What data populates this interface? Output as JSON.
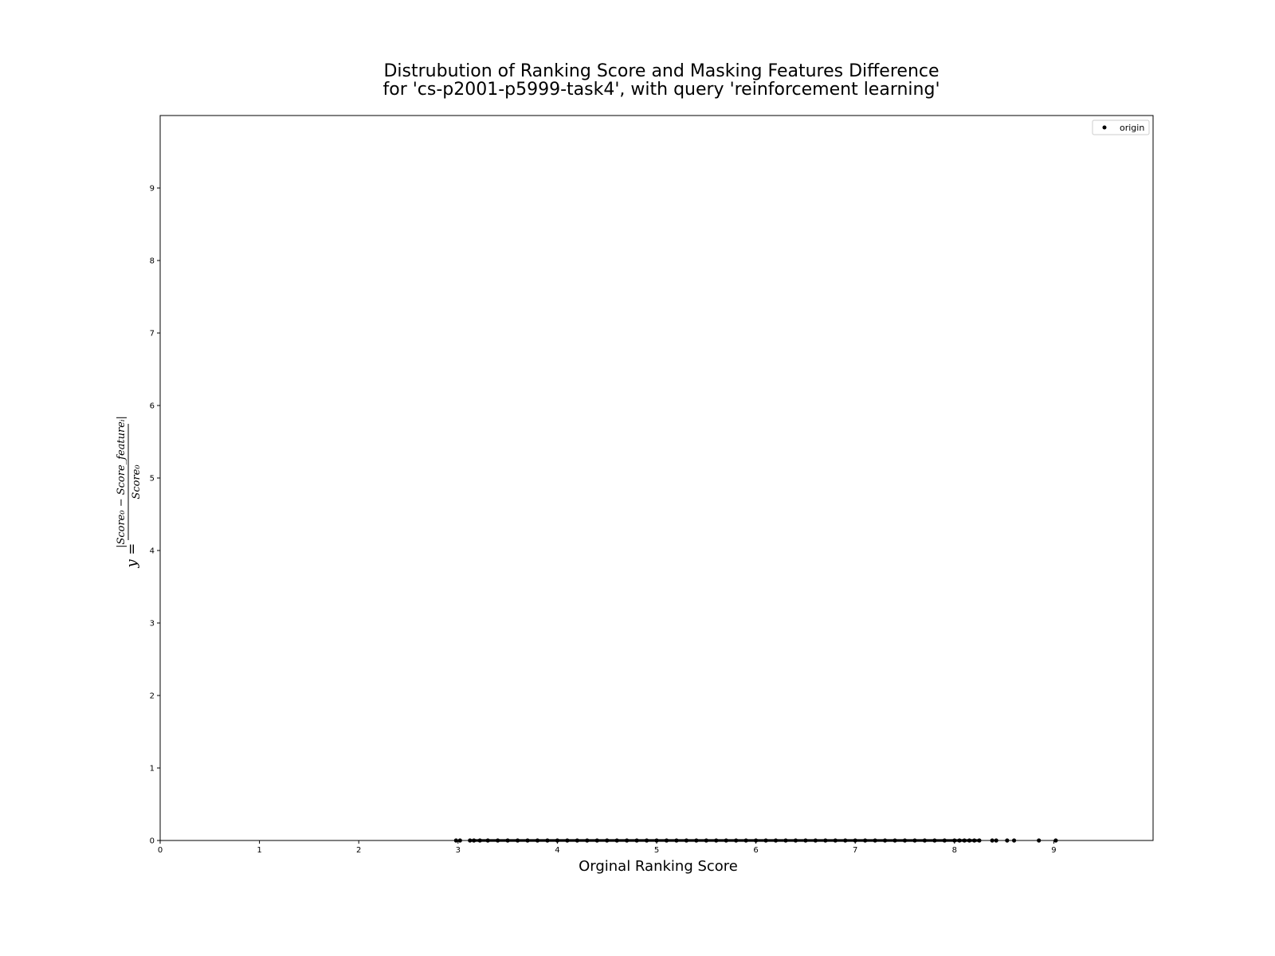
{
  "chart_data": {
    "type": "scatter",
    "title_lines": [
      "Distrubution of Ranking Score and Masking Features Difference",
      "for 'cs-p2001-p5999-task4', with query 'reinforcement learning'"
    ],
    "xlabel": "Orginal Ranking Score",
    "ylabel": {
      "prefix": "y =",
      "numerator": "|Score₀ − Score_featureᵢ|",
      "denominator": "Score₀"
    },
    "xlim": [
      0,
      10
    ],
    "ylim": [
      0,
      10
    ],
    "xticks": [
      "0",
      "1",
      "2",
      "3",
      "4",
      "5",
      "6",
      "7",
      "8",
      "9"
    ],
    "yticks": [
      "0",
      "1",
      "2",
      "3",
      "4",
      "5",
      "6",
      "7",
      "8",
      "9"
    ],
    "grid": false,
    "legend": {
      "position": "top-right",
      "entries": [
        "origin"
      ]
    },
    "marker_color": "#000000",
    "series": [
      {
        "name": "origin",
        "x": [
          2.98,
          3.02,
          3.12,
          3.16,
          3.22,
          3.3,
          3.4,
          3.5,
          3.6,
          3.7,
          3.8,
          3.9,
          4.0,
          4.1,
          4.2,
          4.3,
          4.4,
          4.5,
          4.6,
          4.7,
          4.8,
          4.9,
          5.0,
          5.1,
          5.2,
          5.3,
          5.4,
          5.5,
          5.6,
          5.7,
          5.8,
          5.9,
          6.0,
          6.1,
          6.2,
          6.3,
          6.4,
          6.5,
          6.6,
          6.7,
          6.8,
          6.9,
          7.0,
          7.1,
          7.2,
          7.3,
          7.4,
          7.5,
          7.6,
          7.7,
          7.8,
          7.9,
          8.0,
          8.05,
          8.1,
          8.15,
          8.2,
          8.25,
          8.38,
          8.42,
          8.53,
          8.6,
          8.85,
          9.02
        ],
        "y": [
          0,
          0,
          0,
          0,
          0,
          0,
          0,
          0,
          0,
          0,
          0,
          0,
          0,
          0,
          0,
          0,
          0,
          0,
          0,
          0,
          0,
          0,
          0,
          0,
          0,
          0,
          0,
          0,
          0,
          0,
          0,
          0,
          0,
          0,
          0,
          0,
          0,
          0,
          0,
          0,
          0,
          0,
          0,
          0,
          0,
          0,
          0,
          0,
          0,
          0,
          0,
          0,
          0,
          0,
          0,
          0,
          0,
          0,
          0,
          0,
          0,
          0,
          0,
          0
        ]
      }
    ]
  }
}
